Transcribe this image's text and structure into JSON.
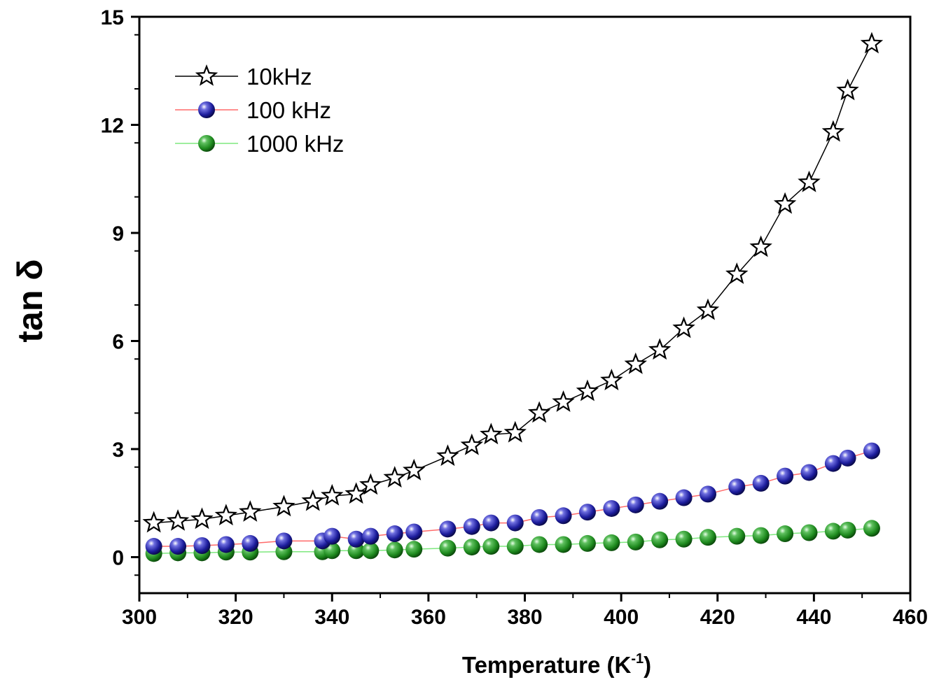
{
  "chart_data": {
    "type": "scatter",
    "title": "",
    "xlabel": "Temperature (K",
    "xlabel_sup": "-1",
    "xlabel_close": ")",
    "ylabel": "tan δ",
    "xlim": [
      300,
      460
    ],
    "ylim": [
      -1,
      15
    ],
    "xticks": [
      300,
      320,
      340,
      360,
      380,
      400,
      420,
      440,
      460
    ],
    "yticks": [
      0,
      3,
      6,
      9,
      12,
      15
    ],
    "legend_position": "top-left",
    "series": [
      {
        "name": "10kHz",
        "marker": "star",
        "marker_color": "#ffffff",
        "line_color": "#000000",
        "x": [
          303,
          308,
          313,
          318,
          323,
          330,
          336,
          340,
          345,
          348,
          353,
          357,
          364,
          369,
          373,
          378,
          383,
          388,
          393,
          398,
          403,
          408,
          413,
          418,
          424,
          429,
          434,
          439,
          444,
          447,
          452
        ],
        "y": [
          0.95,
          1.0,
          1.05,
          1.15,
          1.25,
          1.4,
          1.55,
          1.7,
          1.75,
          2.0,
          2.2,
          2.4,
          2.8,
          3.1,
          3.4,
          3.45,
          4.0,
          4.3,
          4.6,
          4.9,
          5.35,
          5.75,
          6.35,
          6.85,
          7.85,
          8.6,
          9.8,
          10.4,
          11.8,
          12.95,
          14.25
        ]
      },
      {
        "name": "100 kHz",
        "marker": "sphere",
        "marker_color": "#1c1c9c",
        "line_color": "#ff6a6a",
        "x": [
          303,
          308,
          313,
          318,
          323,
          330,
          338,
          340,
          345,
          348,
          353,
          357,
          364,
          369,
          373,
          378,
          383,
          388,
          393,
          398,
          403,
          408,
          413,
          418,
          424,
          429,
          434,
          439,
          444,
          447,
          452
        ],
        "y": [
          0.3,
          0.3,
          0.32,
          0.35,
          0.38,
          0.45,
          0.45,
          0.58,
          0.5,
          0.58,
          0.65,
          0.7,
          0.78,
          0.85,
          0.95,
          0.95,
          1.1,
          1.15,
          1.25,
          1.35,
          1.45,
          1.55,
          1.65,
          1.75,
          1.95,
          2.05,
          2.25,
          2.35,
          2.6,
          2.75,
          2.95
        ]
      },
      {
        "name": "1000 kHz",
        "marker": "sphere",
        "marker_color": "#1e8a1e",
        "line_color": "#7ee87e",
        "x": [
          303,
          308,
          313,
          318,
          323,
          330,
          338,
          340,
          345,
          348,
          353,
          357,
          364,
          369,
          373,
          378,
          383,
          388,
          393,
          398,
          403,
          408,
          413,
          418,
          424,
          429,
          434,
          439,
          444,
          447,
          452
        ],
        "y": [
          0.1,
          0.12,
          0.12,
          0.14,
          0.14,
          0.15,
          0.15,
          0.18,
          0.18,
          0.18,
          0.2,
          0.22,
          0.25,
          0.28,
          0.3,
          0.3,
          0.35,
          0.35,
          0.38,
          0.4,
          0.42,
          0.48,
          0.5,
          0.55,
          0.58,
          0.6,
          0.65,
          0.68,
          0.72,
          0.75,
          0.8
        ]
      }
    ]
  }
}
